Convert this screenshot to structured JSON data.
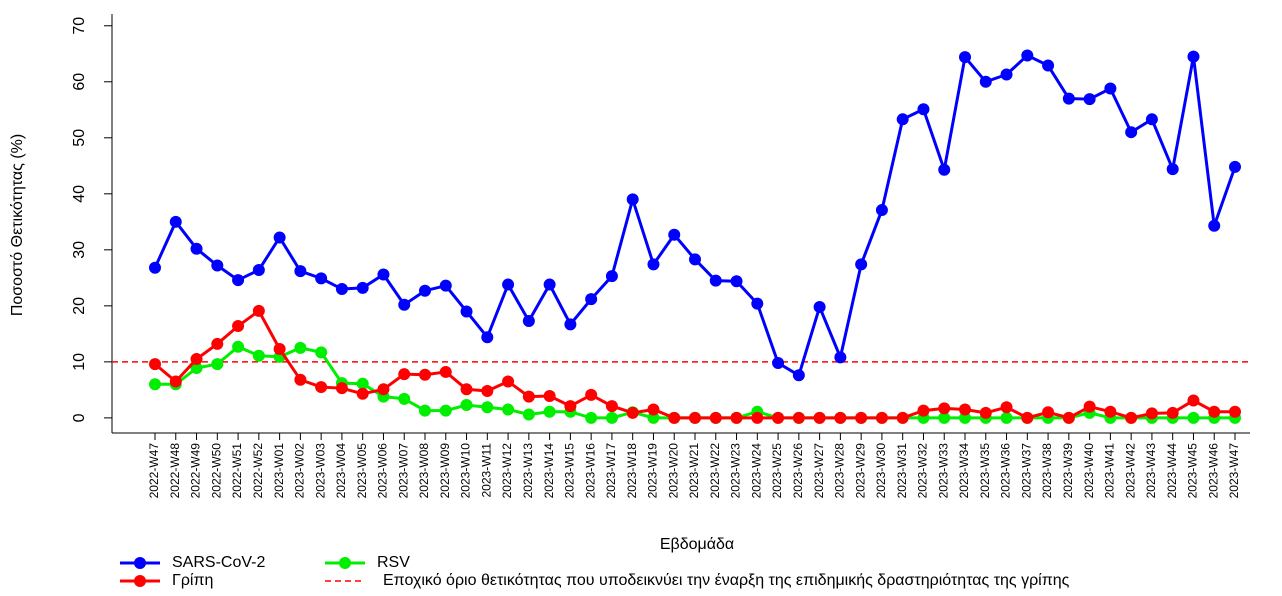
{
  "chart_data": {
    "type": "line",
    "y_label": "Ποσοστό Θετικότητας (%)",
    "x_label": "Εβδομάδα",
    "categories": [
      "2022-W47",
      "2022-W48",
      "2022-W49",
      "2022-W50",
      "2022-W51",
      "2022-W52",
      "2023-W01",
      "2023-W02",
      "2023-W03",
      "2023-W04",
      "2023-W05",
      "2023-W06",
      "2023-W07",
      "2023-W08",
      "2023-W09",
      "2023-W10",
      "2023-W11",
      "2023-W12",
      "2023-W13",
      "2023-W14",
      "2023-W15",
      "2023-W16",
      "2023-W17",
      "2023-W18",
      "2023-W19",
      "2023-W20",
      "2023-W21",
      "2023-W22",
      "2023-W23",
      "2023-W24",
      "2023-W25",
      "2023-W26",
      "2023-W27",
      "2023-W28",
      "2023-W29",
      "2023-W30",
      "2023-W31",
      "2023-W32",
      "2023-W33",
      "2023-W34",
      "2023-W35",
      "2023-W36",
      "2023-W37",
      "2023-W38",
      "2023-W39",
      "2023-W40",
      "2023-W41",
      "2023-W42",
      "2023-W43",
      "2023-W44",
      "2023-W45",
      "2023-W46",
      "2023-W47"
    ],
    "series": [
      {
        "name": "SARS-CoV-2",
        "color": "#0000ff",
        "values": [
          26.8,
          35,
          30.2,
          27.2,
          24.6,
          26.4,
          32.2,
          26.2,
          24.9,
          23,
          23.2,
          25.6,
          20.2,
          22.7,
          23.6,
          19,
          14.4,
          23.8,
          17.3,
          23.8,
          16.7,
          21.2,
          25.3,
          39,
          27.4,
          32.7,
          28.3,
          24.5,
          24.4,
          20.4,
          9.8,
          7.6,
          19.8,
          10.8,
          27.4,
          37.1,
          53.3,
          55.1,
          44.3,
          64.4,
          60,
          61.3,
          64.7,
          62.9,
          57,
          56.9,
          58.8,
          51,
          53.3,
          44.4,
          64.5,
          34.3,
          44.8
        ]
      },
      {
        "name": "Γρίπη",
        "color": "#ff0000",
        "values": [
          9.6,
          6.5,
          10.5,
          13.2,
          16.4,
          19.1,
          12.3,
          6.8,
          5.5,
          5.3,
          4.3,
          5.1,
          7.8,
          7.7,
          8.2,
          5.1,
          4.8,
          6.5,
          3.8,
          3.9,
          2.1,
          4.1,
          2.1,
          0.9,
          1.5,
          0,
          0,
          0,
          0,
          0,
          0,
          0,
          0,
          0,
          0,
          0,
          0,
          1.3,
          1.7,
          1.5,
          0.9,
          1.9,
          0,
          1,
          0,
          2,
          1.1,
          0,
          0.8,
          0.9,
          3.1,
          1.1,
          1.1
        ]
      },
      {
        "name": "RSV",
        "color": "#00ee00",
        "values": [
          6,
          6,
          8.9,
          9.6,
          12.7,
          11.1,
          10.9,
          12.5,
          11.7,
          6.2,
          6.1,
          3.8,
          3.4,
          1.3,
          1.3,
          2.3,
          1.9,
          1.5,
          0.6,
          1.1,
          1.1,
          0,
          0,
          1,
          0,
          0,
          0,
          0,
          0,
          1.1,
          0,
          0,
          0,
          0,
          0,
          0,
          0,
          0,
          0,
          0,
          0,
          0,
          0,
          0,
          0,
          0.9,
          0,
          0,
          0,
          0,
          0,
          0,
          0
        ]
      }
    ],
    "threshold": {
      "value": 10,
      "label": "Εποχικό όριο θετικότητας που υποδεικνύει την έναρξη της επιδημικής δραστηριότητας της γρίπης",
      "color": "#ff0000"
    },
    "ylim": [
      -2.7,
      72.1
    ],
    "yticks": [
      0,
      10,
      20,
      30,
      40,
      50,
      60,
      70
    ]
  }
}
